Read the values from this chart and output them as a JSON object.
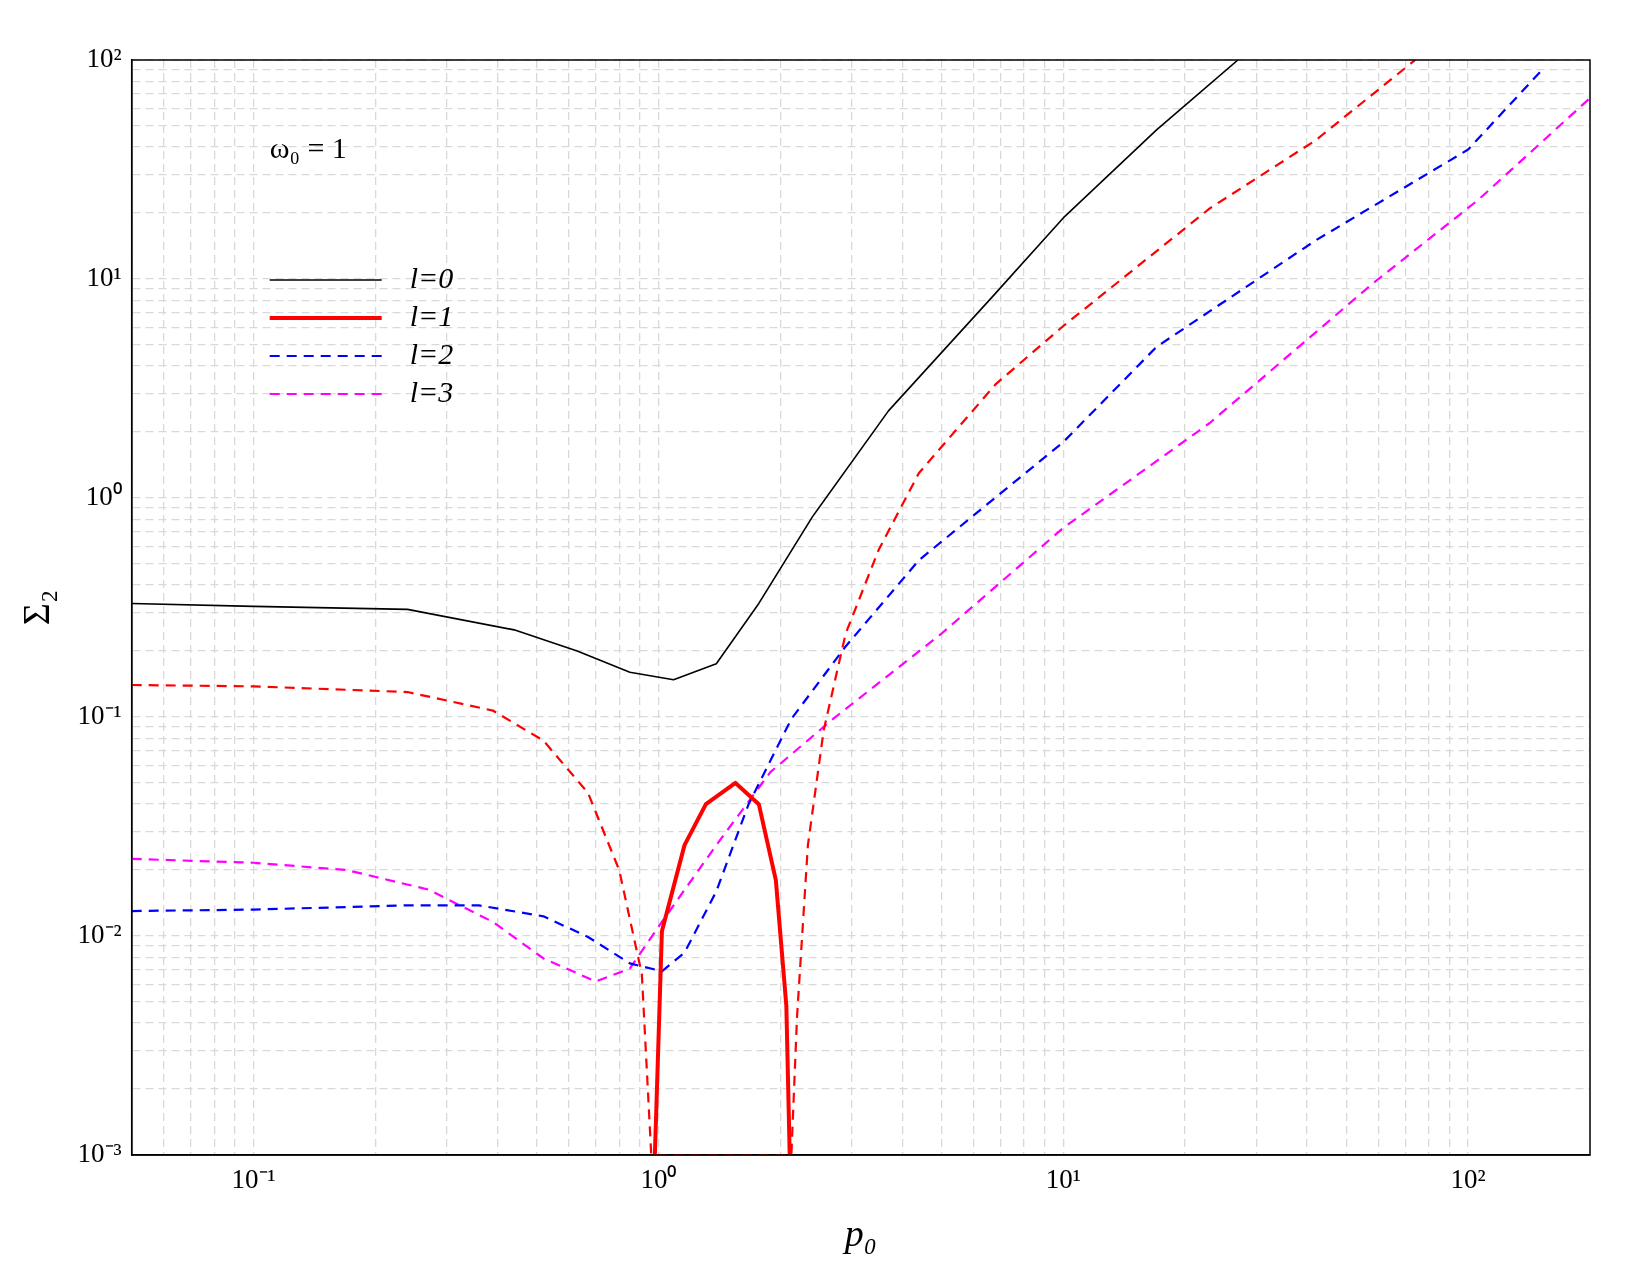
{
  "chart_data": {
    "type": "line",
    "xlabel": "p₀",
    "ylabel": "Σ₂",
    "annotations": [
      "ω₀ = 1"
    ],
    "log": "xy",
    "grid": true,
    "legend": "top left",
    "marker": "none",
    "xlim": [
      0.05,
      200
    ],
    "ylim": [
      0.001,
      100
    ],
    "xticks": [
      {
        "value": 0.05,
        "label": null
      },
      {
        "value": 0.06,
        "label": null
      },
      {
        "value": 0.07,
        "label": null
      },
      {
        "value": 0.08,
        "label": null
      },
      {
        "value": 0.09,
        "label": null
      },
      {
        "value": 0.1,
        "label": "10⁻¹"
      },
      {
        "value": 0.2,
        "label": null
      },
      {
        "value": 0.3,
        "label": null
      },
      {
        "value": 0.4,
        "label": null
      },
      {
        "value": 0.5,
        "label": null
      },
      {
        "value": 0.6,
        "label": null
      },
      {
        "value": 0.7,
        "label": null
      },
      {
        "value": 0.8,
        "label": null
      },
      {
        "value": 0.9,
        "label": null
      },
      {
        "value": 1,
        "label": "10⁰"
      },
      {
        "value": 2,
        "label": null
      },
      {
        "value": 3,
        "label": null
      },
      {
        "value": 4,
        "label": null
      },
      {
        "value": 5,
        "label": null
      },
      {
        "value": 6,
        "label": null
      },
      {
        "value": 7,
        "label": null
      },
      {
        "value": 8,
        "label": null
      },
      {
        "value": 9,
        "label": null
      },
      {
        "value": 10,
        "label": "10¹"
      },
      {
        "value": 20,
        "label": null
      },
      {
        "value": 30,
        "label": null
      },
      {
        "value": 40,
        "label": null
      },
      {
        "value": 50,
        "label": null
      },
      {
        "value": 60,
        "label": null
      },
      {
        "value": 70,
        "label": null
      },
      {
        "value": 80,
        "label": null
      },
      {
        "value": 90,
        "label": null
      },
      {
        "value": 100,
        "label": "10²"
      }
    ],
    "yticks": [
      {
        "value": 0.001,
        "label": "10⁻³"
      },
      {
        "value": 0.002,
        "label": null
      },
      {
        "value": 0.003,
        "label": null
      },
      {
        "value": 0.004,
        "label": null
      },
      {
        "value": 0.005,
        "label": null
      },
      {
        "value": 0.006,
        "label": null
      },
      {
        "value": 0.007,
        "label": null
      },
      {
        "value": 0.008,
        "label": null
      },
      {
        "value": 0.009,
        "label": null
      },
      {
        "value": 0.01,
        "label": "10⁻²"
      },
      {
        "value": 0.02,
        "label": null
      },
      {
        "value": 0.03,
        "label": null
      },
      {
        "value": 0.04,
        "label": null
      },
      {
        "value": 0.05,
        "label": null
      },
      {
        "value": 0.06,
        "label": null
      },
      {
        "value": 0.07,
        "label": null
      },
      {
        "value": 0.08,
        "label": null
      },
      {
        "value": 0.09,
        "label": null
      },
      {
        "value": 0.1,
        "label": "10⁻¹"
      },
      {
        "value": 0.2,
        "label": null
      },
      {
        "value": 0.3,
        "label": null
      },
      {
        "value": 0.4,
        "label": null
      },
      {
        "value": 0.5,
        "label": null
      },
      {
        "value": 0.6,
        "label": null
      },
      {
        "value": 0.7,
        "label": null
      },
      {
        "value": 0.8,
        "label": null
      },
      {
        "value": 0.9,
        "label": null
      },
      {
        "value": 1,
        "label": "10⁰"
      },
      {
        "value": 2,
        "label": null
      },
      {
        "value": 3,
        "label": null
      },
      {
        "value": 4,
        "label": null
      },
      {
        "value": 5,
        "label": null
      },
      {
        "value": 6,
        "label": null
      },
      {
        "value": 7,
        "label": null
      },
      {
        "value": 8,
        "label": null
      },
      {
        "value": 9,
        "label": null
      },
      {
        "value": 10,
        "label": "10¹"
      },
      {
        "value": 20,
        "label": null
      },
      {
        "value": 30,
        "label": null
      },
      {
        "value": 40,
        "label": null
      },
      {
        "value": 50,
        "label": null
      },
      {
        "value": 60,
        "label": null
      },
      {
        "value": 70,
        "label": null
      },
      {
        "value": 80,
        "label": null
      },
      {
        "value": 90,
        "label": null
      },
      {
        "value": 100,
        "label": "10²"
      }
    ],
    "series": [
      {
        "name": "l=0",
        "color": "#000000",
        "line_style": "solid",
        "x": [
          0.05,
          0.1,
          0.24,
          0.44,
          0.63,
          0.85,
          1.09,
          1.39,
          1.77,
          2.4,
          3.7,
          6.8,
          10,
          17,
          27
        ],
        "values": [
          0.33,
          0.32,
          0.31,
          0.25,
          0.2,
          0.16,
          0.148,
          0.175,
          0.33,
          0.82,
          2.5,
          8.6,
          19,
          48,
          100
        ]
      },
      {
        "name": "l=1",
        "color": "#ff0000",
        "line_style": "solid",
        "x": [
          0.98,
          1.02,
          1.16,
          1.31,
          1.55,
          1.77,
          1.95,
          2.07,
          2.11
        ],
        "values": [
          0.001,
          0.0105,
          0.026,
          0.04,
          0.05,
          0.04,
          0.018,
          0.0048,
          0.001
        ]
      },
      {
        "color": "#ff0000",
        "line_style": "dashed",
        "x": [
          0.05,
          0.1,
          0.24,
          0.39,
          0.52,
          0.67,
          0.8,
          0.91,
          0.96,
          2.13,
          2.2,
          2.34,
          2.56,
          2.9,
          3.5,
          4.4,
          6.8,
          10,
          23,
          42,
          74
        ],
        "values": [
          0.14,
          0.138,
          0.13,
          0.107,
          0.078,
          0.045,
          0.02,
          0.0067,
          0.001,
          0.001,
          0.0043,
          0.026,
          0.087,
          0.24,
          0.58,
          1.3,
          3.3,
          6.1,
          21,
          43,
          100
        ]
      },
      {
        "name": "l=2",
        "color": "#0000ff",
        "line_style": "dashed",
        "x": [
          0.05,
          0.1,
          0.24,
          0.36,
          0.52,
          0.67,
          0.85,
          1.02,
          1.16,
          1.39,
          1.67,
          2.13,
          2.9,
          4.4,
          10,
          17,
          42,
          100,
          153
        ],
        "values": [
          0.013,
          0.0132,
          0.0138,
          0.0138,
          0.0123,
          0.0099,
          0.0075,
          0.0069,
          0.0084,
          0.016,
          0.04,
          0.098,
          0.21,
          0.52,
          1.8,
          4.9,
          15,
          39,
          91
        ]
      },
      {
        "name": "l=3",
        "color": "#ff00ff",
        "line_style": "dashed",
        "x": [
          0.05,
          0.1,
          0.17,
          0.27,
          0.39,
          0.52,
          0.7,
          0.85,
          1.02,
          1.39,
          1.89,
          2.7,
          5,
          10,
          23,
          58,
          106,
          200
        ],
        "values": [
          0.0225,
          0.0216,
          0.02,
          0.0163,
          0.0116,
          0.0079,
          0.0062,
          0.0071,
          0.0116,
          0.026,
          0.056,
          0.098,
          0.24,
          0.73,
          2.2,
          9.5,
          23,
          67
        ]
      }
    ]
  }
}
